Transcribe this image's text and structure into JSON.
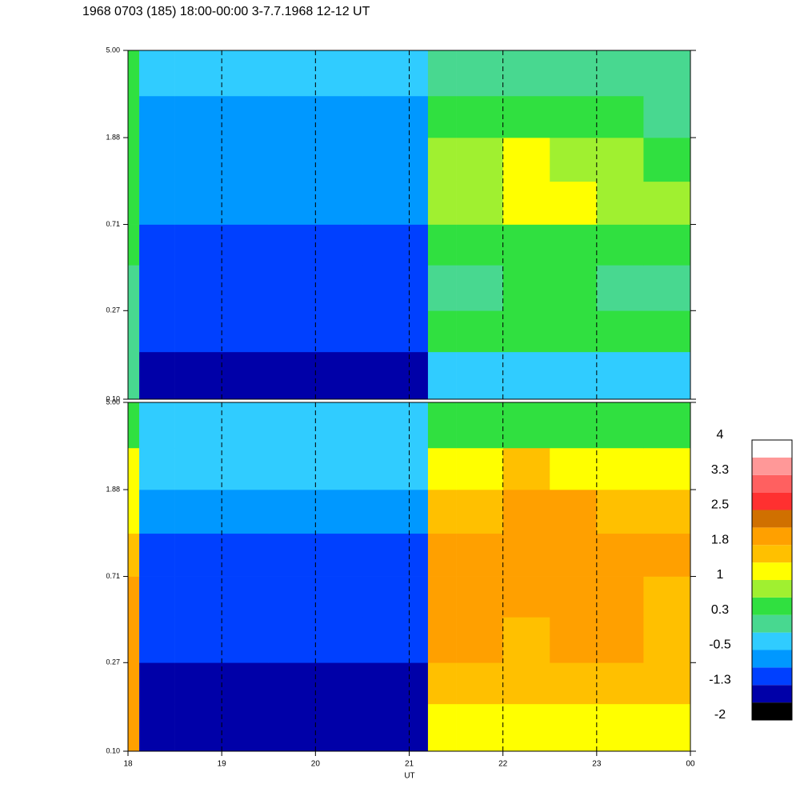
{
  "chart_data": {
    "type": "heatmap",
    "title": "1968 0703 (185) 18:00-00:00 3-7.7.1968  12-12 UT",
    "xlabel": "UT",
    "xlim": [
      18,
      24
    ],
    "xticks": [
      18,
      19,
      20,
      21,
      22,
      23,
      {
        "value": 24,
        "label": "00"
      }
    ],
    "grid": true,
    "log_y": true,
    "ylim": [
      0.1,
      5.0
    ],
    "yticks": [
      {
        "value": 0.1,
        "label": "0.10"
      },
      0.27,
      0.71,
      1.88,
      {
        "value": 5.0,
        "label": "5.00"
      }
    ],
    "x_edges": [
      18,
      18.12,
      18.5,
      19,
      19.5,
      20,
      20.5,
      21,
      21.2,
      21.5,
      22,
      22.5,
      23,
      23.5,
      24
    ],
    "y_edges": [
      0.1,
      0.17,
      0.27,
      0.45,
      0.71,
      1.15,
      1.88,
      3.0,
      5.0
    ],
    "panels": [
      {
        "z": [
          [
            0.1,
            -1.5,
            -1.5,
            -1.5,
            -1.5,
            -1.5,
            -1.5,
            -1.5,
            -0.3,
            -0.3,
            -0.3,
            -0.3,
            -0.3,
            -0.3
          ],
          [
            0.1,
            -1.1,
            -1.1,
            -1.1,
            -1.1,
            -1.1,
            -1.1,
            -1.1,
            0.3,
            0.3,
            0.3,
            0.3,
            0.3,
            0.3
          ],
          [
            0.1,
            -1.0,
            -1.0,
            -1.0,
            -1.0,
            -1.0,
            -1.0,
            -1.0,
            0.1,
            0.2,
            0.3,
            0.3,
            0.1,
            0.1
          ],
          [
            0.3,
            -0.9,
            -0.9,
            -0.9,
            -0.9,
            -0.9,
            -0.9,
            -0.9,
            0.4,
            0.5,
            0.6,
            0.6,
            0.4,
            0.4
          ],
          [
            0.3,
            -0.8,
            -0.8,
            -0.8,
            -0.8,
            -0.8,
            -0.8,
            -0.8,
            0.8,
            0.9,
            1.0,
            1.0,
            0.8,
            0.7
          ],
          [
            0.5,
            -0.6,
            -0.6,
            -0.6,
            -0.6,
            -0.6,
            -0.6,
            -0.6,
            0.7,
            0.8,
            1.0,
            0.9,
            0.7,
            0.5
          ],
          [
            0.5,
            -0.6,
            -0.6,
            -0.6,
            -0.6,
            -0.6,
            -0.6,
            -0.6,
            0.4,
            0.4,
            0.5,
            0.4,
            0.3,
            0.2
          ],
          [
            0.5,
            -0.3,
            -0.3,
            -0.3,
            -0.3,
            -0.3,
            -0.3,
            -0.3,
            0.0,
            0.0,
            0.1,
            0.1,
            0.0,
            0.0
          ]
        ]
      },
      {
        "z": [
          [
            1.9,
            -1.5,
            -1.5,
            -1.5,
            -1.5,
            -1.5,
            -1.5,
            -1.5,
            1.2,
            1.2,
            1.2,
            1.2,
            1.2,
            1.2
          ],
          [
            1.9,
            -1.3,
            -1.3,
            -1.3,
            -1.3,
            -1.3,
            -1.3,
            -1.3,
            1.5,
            1.5,
            1.5,
            1.5,
            1.5,
            1.4
          ],
          [
            1.9,
            -1.1,
            -1.1,
            -1.1,
            -1.1,
            -1.1,
            -1.1,
            -1.1,
            1.8,
            1.8,
            1.7,
            1.8,
            1.8,
            1.6
          ],
          [
            1.9,
            -1.0,
            -1.0,
            -1.0,
            -1.0,
            -1.0,
            -1.0,
            -1.0,
            1.9,
            1.9,
            1.9,
            1.9,
            1.9,
            1.7
          ],
          [
            1.6,
            -0.9,
            -0.9,
            -0.9,
            -0.9,
            -0.9,
            -0.9,
            -0.9,
            2.0,
            2.1,
            2.1,
            2.1,
            2.1,
            1.8
          ],
          [
            1.2,
            -0.7,
            -0.7,
            -0.7,
            -0.7,
            -0.7,
            -0.7,
            -0.7,
            1.6,
            1.7,
            1.9,
            1.8,
            1.7,
            1.5
          ],
          [
            1.2,
            -0.5,
            -0.5,
            -0.5,
            -0.5,
            -0.5,
            -0.5,
            -0.5,
            1.3,
            1.3,
            1.4,
            1.3,
            1.3,
            1.2
          ],
          [
            0.5,
            -0.2,
            -0.2,
            -0.2,
            -0.2,
            -0.2,
            -0.2,
            -0.2,
            0.6,
            0.6,
            0.6,
            0.6,
            0.6,
            0.6
          ]
        ]
      }
    ],
    "colorbar": {
      "levels": [
        -2.0,
        -1.625,
        -1.25,
        -0.875,
        -0.5,
        -0.125,
        0.25,
        0.625,
        1.0,
        1.375,
        1.75,
        2.125,
        2.5,
        2.875,
        3.25,
        3.625,
        4.0
      ],
      "colors": [
        "#000000",
        "#0000a8",
        "#0040ff",
        "#0098ff",
        "#30ccff",
        "#48d890",
        "#30e040",
        "#a0f030",
        "#ffff00",
        "#ffc000",
        "#ffa000",
        "#d07000",
        "#ff3030",
        "#ff6060",
        "#ff9898",
        "#ffffff"
      ],
      "ticks": [
        4.0,
        {
          "value": 3.25,
          "label": "3.3"
        },
        2.5,
        {
          "value": 1.75,
          "label": "1.8"
        },
        1.0,
        {
          "value": 0.25,
          "label": "0.3"
        },
        -0.5,
        {
          "value": -1.25,
          "label": "-1.3"
        },
        -2.0
      ]
    }
  }
}
